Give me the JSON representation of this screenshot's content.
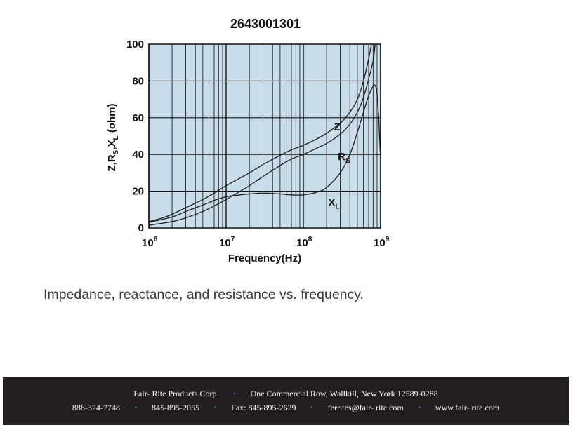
{
  "chart_data": {
    "type": "line",
    "title": "2643001301",
    "xlabel": "Frequency(Hz)",
    "ylabel": {
      "base": "Z,R",
      "sub1": "S",
      "mid": ",X",
      "sub2": "L",
      "unit": " (ohm)"
    },
    "xscale": "log",
    "xlim": [
      1000000,
      1000000000
    ],
    "ylim": [
      0,
      100
    ],
    "grid": true,
    "plot_background": "#c9dce9",
    "x_ticks": [
      {
        "value": 1000000,
        "base": "10",
        "exp": "6"
      },
      {
        "value": 10000000,
        "base": "10",
        "exp": "7"
      },
      {
        "value": 100000000,
        "base": "10",
        "exp": "8"
      },
      {
        "value": 1000000000,
        "base": "10",
        "exp": "9"
      }
    ],
    "y_ticks": [
      0,
      20,
      40,
      60,
      80,
      100
    ],
    "series": [
      {
        "name": "Z",
        "label": {
          "main": "Z",
          "sub": ""
        },
        "label_at": {
          "x": 250000000,
          "y": 53
        },
        "points": [
          [
            1000000,
            3.5
          ],
          [
            1500000,
            5.5
          ],
          [
            2000000,
            7.5
          ],
          [
            3000000,
            11
          ],
          [
            5000000,
            15.5
          ],
          [
            7000000,
            19
          ],
          [
            10000000,
            23
          ],
          [
            20000000,
            30
          ],
          [
            30000000,
            34.5
          ],
          [
            50000000,
            39.5
          ],
          [
            70000000,
            42.5
          ],
          [
            100000000,
            45
          ],
          [
            150000000,
            48.5
          ],
          [
            200000000,
            51.5
          ],
          [
            300000000,
            57
          ],
          [
            400000000,
            63
          ],
          [
            500000000,
            70
          ],
          [
            600000000,
            80
          ],
          [
            700000000,
            92
          ],
          [
            760000000,
            100
          ]
        ]
      },
      {
        "name": "RS",
        "label": {
          "main": "R",
          "sub": "S"
        },
        "label_at": {
          "x": 280000000,
          "y": 37
        },
        "points": [
          [
            1000000,
            1.5
          ],
          [
            2000000,
            3.5
          ],
          [
            3000000,
            5.5
          ],
          [
            5000000,
            9
          ],
          [
            7000000,
            12
          ],
          [
            10000000,
            15.5
          ],
          [
            20000000,
            23
          ],
          [
            30000000,
            28
          ],
          [
            50000000,
            34
          ],
          [
            70000000,
            37.5
          ],
          [
            100000000,
            40
          ],
          [
            150000000,
            43.5
          ],
          [
            200000000,
            46
          ],
          [
            300000000,
            51
          ],
          [
            400000000,
            56.5
          ],
          [
            500000000,
            63
          ],
          [
            600000000,
            71
          ],
          [
            700000000,
            81
          ],
          [
            800000000,
            91
          ],
          [
            850000000,
            100
          ]
        ]
      },
      {
        "name": "XL",
        "label": {
          "main": "X",
          "sub": "L"
        },
        "label_at": {
          "x": 210000000,
          "y": 12
        },
        "points": [
          [
            1000000,
            3
          ],
          [
            2000000,
            6
          ],
          [
            3000000,
            9
          ],
          [
            5000000,
            12.5
          ],
          [
            7000000,
            15
          ],
          [
            10000000,
            17
          ],
          [
            15000000,
            18
          ],
          [
            20000000,
            18.5
          ],
          [
            30000000,
            19
          ],
          [
            50000000,
            18.5
          ],
          [
            70000000,
            18
          ],
          [
            100000000,
            18
          ],
          [
            150000000,
            19.5
          ],
          [
            200000000,
            22
          ],
          [
            300000000,
            30
          ],
          [
            400000000,
            40
          ],
          [
            500000000,
            52
          ],
          [
            600000000,
            63
          ],
          [
            700000000,
            72
          ],
          [
            800000000,
            77
          ],
          [
            850000000,
            77.5
          ],
          [
            900000000,
            73
          ],
          [
            950000000,
            58
          ],
          [
            980000000,
            45
          ],
          [
            1000000000,
            39
          ]
        ]
      }
    ]
  },
  "caption": "Impedance, reactance, and resistance vs. frequency.",
  "footer": {
    "company": "Fair- Rite Products Corp.",
    "address": "One Commercial Row, Wallkill, New York 12589-0288",
    "phone1": "888-324-7748",
    "phone2": "845-895-2055",
    "fax": "Fax: 845-895-2629",
    "email": "ferrites@fair- rite.com",
    "web": "www.fair- rite.com",
    "bullet": "•"
  }
}
